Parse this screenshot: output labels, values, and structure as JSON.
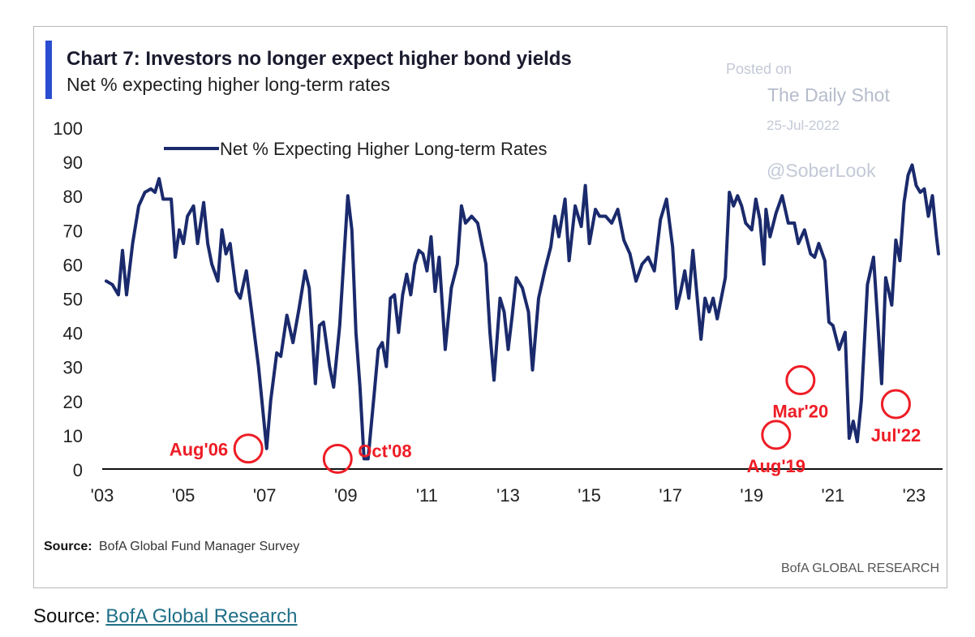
{
  "chart_data": {
    "type": "line",
    "title": "Chart 7: Investors no longer expect higher bond yields",
    "subtitle": "Net % expecting higher long-term rates",
    "xlabel": "",
    "ylabel": "",
    "ylim": [
      0,
      100
    ],
    "xlim": [
      2003.0,
      2023.7
    ],
    "yticks": [
      "0",
      "10",
      "20",
      "30",
      "40",
      "50",
      "60",
      "70",
      "80",
      "90",
      "100"
    ],
    "xtick_values": [
      2003,
      2005,
      2007,
      2009,
      2011,
      2013,
      2015,
      2017,
      2019,
      2021,
      2023
    ],
    "xticks": [
      "'03",
      "'05",
      "'07",
      "'09",
      "'11",
      "'13",
      "'15",
      "'17",
      "'19",
      "'21",
      "'23"
    ],
    "legend": {
      "position": "top-left",
      "entries": [
        "Net % Expecting Higher Long-term Rates"
      ]
    },
    "grid": false,
    "series": [
      {
        "name": "Net % Expecting Higher Long-term Rates",
        "color": "#1a2a6c",
        "points": [
          [
            2003.1,
            55
          ],
          [
            2003.25,
            54
          ],
          [
            2003.4,
            51
          ],
          [
            2003.5,
            64
          ],
          [
            2003.6,
            51
          ],
          [
            2003.75,
            66
          ],
          [
            2003.9,
            77
          ],
          [
            2004.05,
            81
          ],
          [
            2004.2,
            82
          ],
          [
            2004.3,
            81
          ],
          [
            2004.4,
            85
          ],
          [
            2004.5,
            79
          ],
          [
            2004.7,
            79
          ],
          [
            2004.8,
            62
          ],
          [
            2004.9,
            70
          ],
          [
            2005.0,
            66
          ],
          [
            2005.1,
            74
          ],
          [
            2005.25,
            77
          ],
          [
            2005.35,
            66
          ],
          [
            2005.5,
            78
          ],
          [
            2005.6,
            66
          ],
          [
            2005.7,
            60
          ],
          [
            2005.85,
            55
          ],
          [
            2005.95,
            70
          ],
          [
            2006.05,
            63
          ],
          [
            2006.15,
            66
          ],
          [
            2006.3,
            52
          ],
          [
            2006.4,
            50
          ],
          [
            2006.55,
            58
          ],
          [
            2006.67,
            47
          ],
          [
            2006.85,
            30
          ],
          [
            2006.95,
            18
          ],
          [
            2007.05,
            6
          ],
          [
            2007.15,
            20
          ],
          [
            2007.3,
            34
          ],
          [
            2007.4,
            33
          ],
          [
            2007.55,
            45
          ],
          [
            2007.7,
            37
          ],
          [
            2007.85,
            47
          ],
          [
            2008.0,
            58
          ],
          [
            2008.1,
            53
          ],
          [
            2008.25,
            25
          ],
          [
            2008.35,
            42
          ],
          [
            2008.45,
            43
          ],
          [
            2008.6,
            30
          ],
          [
            2008.7,
            24
          ],
          [
            2008.85,
            42
          ],
          [
            2009.05,
            80
          ],
          [
            2009.15,
            70
          ],
          [
            2009.25,
            40
          ],
          [
            2009.35,
            24
          ],
          [
            2009.45,
            3
          ],
          [
            2009.55,
            3
          ],
          [
            2009.7,
            22
          ],
          [
            2009.8,
            35
          ],
          [
            2009.9,
            37
          ],
          [
            2010.0,
            30
          ],
          [
            2010.1,
            50
          ],
          [
            2010.2,
            51
          ],
          [
            2010.3,
            40
          ],
          [
            2010.4,
            51
          ],
          [
            2010.5,
            57
          ],
          [
            2010.6,
            51
          ],
          [
            2010.7,
            60
          ],
          [
            2010.8,
            64
          ],
          [
            2010.9,
            63
          ],
          [
            2011.0,
            58
          ],
          [
            2011.1,
            68
          ],
          [
            2011.2,
            52
          ],
          [
            2011.3,
            62
          ],
          [
            2011.45,
            35
          ],
          [
            2011.6,
            53
          ],
          [
            2011.75,
            60
          ],
          [
            2011.85,
            77
          ],
          [
            2011.95,
            72
          ],
          [
            2012.1,
            74
          ],
          [
            2012.25,
            72
          ],
          [
            2012.45,
            60
          ],
          [
            2012.55,
            40
          ],
          [
            2012.65,
            26
          ],
          [
            2012.8,
            50
          ],
          [
            2012.9,
            46
          ],
          [
            2013.0,
            35
          ],
          [
            2013.1,
            45
          ],
          [
            2013.2,
            56
          ],
          [
            2013.35,
            53
          ],
          [
            2013.5,
            46
          ],
          [
            2013.6,
            29
          ],
          [
            2013.75,
            50
          ],
          [
            2013.9,
            58
          ],
          [
            2014.05,
            65
          ],
          [
            2014.15,
            74
          ],
          [
            2014.25,
            68
          ],
          [
            2014.4,
            79
          ],
          [
            2014.5,
            61
          ],
          [
            2014.65,
            77
          ],
          [
            2014.8,
            71
          ],
          [
            2014.9,
            83
          ],
          [
            2015.0,
            66
          ],
          [
            2015.15,
            76
          ],
          [
            2015.25,
            74
          ],
          [
            2015.4,
            74
          ],
          [
            2015.55,
            72
          ],
          [
            2015.7,
            76
          ],
          [
            2015.85,
            67
          ],
          [
            2016.0,
            63
          ],
          [
            2016.15,
            55
          ],
          [
            2016.3,
            60
          ],
          [
            2016.45,
            62
          ],
          [
            2016.6,
            58
          ],
          [
            2016.75,
            73
          ],
          [
            2016.9,
            79
          ],
          [
            2017.05,
            65
          ],
          [
            2017.15,
            47
          ],
          [
            2017.25,
            52
          ],
          [
            2017.35,
            58
          ],
          [
            2017.45,
            50
          ],
          [
            2017.55,
            64
          ],
          [
            2017.65,
            51
          ],
          [
            2017.75,
            38
          ],
          [
            2017.85,
            50
          ],
          [
            2017.95,
            46
          ],
          [
            2018.05,
            50
          ],
          [
            2018.15,
            44
          ],
          [
            2018.25,
            50
          ],
          [
            2018.35,
            56
          ],
          [
            2018.45,
            81
          ],
          [
            2018.55,
            77
          ],
          [
            2018.65,
            80
          ],
          [
            2018.75,
            77
          ],
          [
            2018.85,
            72
          ],
          [
            2019.0,
            70
          ],
          [
            2019.1,
            79
          ],
          [
            2019.2,
            73
          ],
          [
            2019.3,
            60
          ],
          [
            2019.35,
            76
          ],
          [
            2019.45,
            68
          ],
          [
            2019.6,
            75
          ],
          [
            2019.75,
            80
          ],
          [
            2019.9,
            72
          ],
          [
            2020.05,
            72
          ],
          [
            2020.15,
            66
          ],
          [
            2020.3,
            70
          ],
          [
            2020.45,
            63
          ],
          [
            2020.55,
            62
          ],
          [
            2020.65,
            66
          ],
          [
            2020.8,
            61
          ],
          [
            2020.9,
            43
          ],
          [
            2021.0,
            42
          ],
          [
            2021.15,
            35
          ],
          [
            2021.3,
            40
          ],
          [
            2021.4,
            9
          ],
          [
            2021.5,
            14
          ],
          [
            2021.6,
            8
          ],
          [
            2021.7,
            20
          ],
          [
            2021.85,
            54
          ],
          [
            2022.0,
            62
          ],
          [
            2022.1,
            44
          ],
          [
            2022.2,
            25
          ],
          [
            2022.3,
            56
          ],
          [
            2022.45,
            48
          ],
          [
            2022.55,
            67
          ],
          [
            2022.65,
            61
          ],
          [
            2022.75,
            78
          ],
          [
            2022.85,
            86
          ],
          [
            2022.95,
            89
          ],
          [
            2023.05,
            83
          ],
          [
            2023.15,
            81
          ],
          [
            2023.25,
            82
          ],
          [
            2023.35,
            74
          ],
          [
            2023.45,
            80
          ],
          [
            2023.55,
            68
          ],
          [
            2023.6,
            63
          ]
        ]
      }
    ],
    "annotations": [
      {
        "label": "Aug'06",
        "x": 2006.6,
        "y": 6,
        "label_side": "left"
      },
      {
        "label": "Oct'08",
        "x": 2008.8,
        "y": 3,
        "label_side": "right"
      },
      {
        "label": "Aug'19",
        "x": 2019.6,
        "y": 10,
        "label_side": "below"
      },
      {
        "label": "Mar'20",
        "x": 2020.2,
        "y": 26,
        "label_side": "below"
      },
      {
        "label": "Jul'22",
        "x": 2022.55,
        "y": 19,
        "label_side": "below"
      }
    ],
    "annotation_color": "#ee1c25",
    "source": "Source:",
    "source_text": "BofA Global Fund Manager Survey",
    "brand": "BofA GLOBAL RESEARCH"
  },
  "watermark": {
    "posted_on": "Posted on",
    "site": "The Daily Shot",
    "date": "25-Jul-2022",
    "handle": "@SoberLook"
  },
  "footer": {
    "label": "Source:",
    "link_text": "BofA Global Research"
  },
  "colors": {
    "title_bar": "#2a4cd0",
    "line": "#1a2a6c",
    "circle": "#ee1c25",
    "watermark": "#b5bccb"
  }
}
